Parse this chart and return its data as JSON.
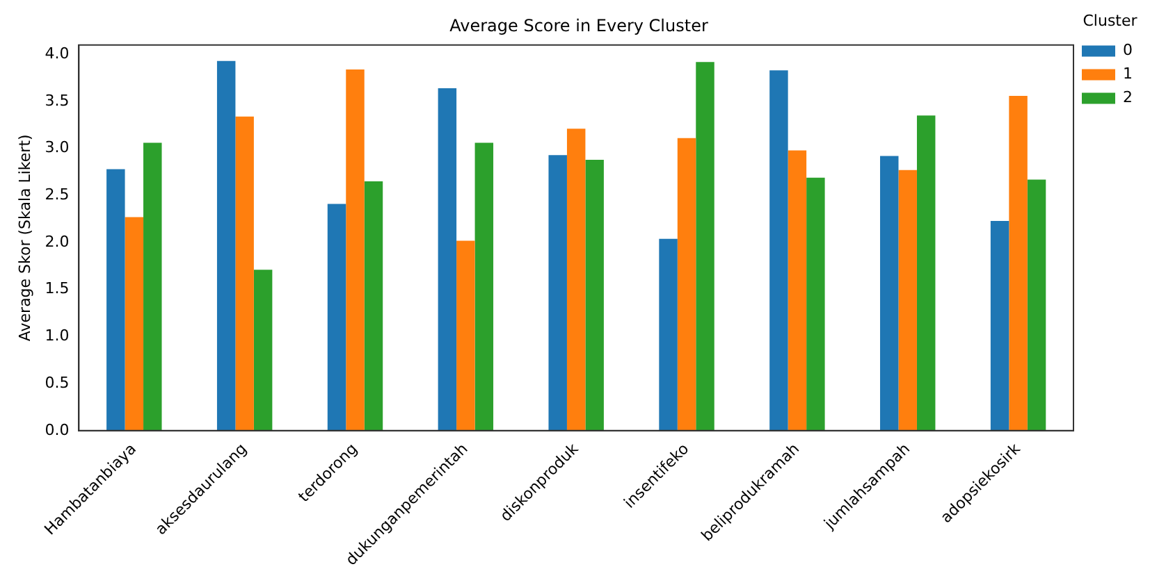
{
  "chart_data": {
    "type": "bar",
    "title": "Average Score in Every Cluster",
    "ylabel": "Average Skor (Skala Likert)",
    "legend_title": "Cluster",
    "legend": "right",
    "grid": false,
    "categories": [
      "Hambatanbiaya",
      "aksesdaurulang",
      "terdorong",
      "dukunganpemerintah",
      "diskonproduk",
      "insentifeko",
      "beliprodukramah",
      "jumlahsampah",
      "adopsiekosirk"
    ],
    "series": [
      {
        "name": "0",
        "color": "#1f77b4",
        "values": [
          2.78,
          3.93,
          2.41,
          3.64,
          2.93,
          2.04,
          3.83,
          2.92,
          2.23
        ]
      },
      {
        "name": "1",
        "color": "#ff7f0e",
        "values": [
          2.27,
          3.34,
          3.84,
          2.02,
          3.21,
          3.11,
          2.98,
          2.77,
          3.56
        ]
      },
      {
        "name": "2",
        "color": "#2ca02c",
        "values": [
          3.06,
          1.71,
          2.65,
          3.06,
          2.88,
          3.92,
          2.69,
          3.35,
          2.67
        ]
      }
    ],
    "ylim": [
      0,
      4.1
    ],
    "yticks": [
      {
        "value": 0,
        "label": "0.0"
      },
      0.5,
      {
        "value": 1,
        "label": "1.0"
      },
      1.5,
      {
        "value": 2,
        "label": "2.0"
      },
      2.5,
      {
        "value": 3,
        "label": "3.0"
      },
      3.5,
      {
        "value": 4,
        "label": "4.0"
      }
    ]
  }
}
